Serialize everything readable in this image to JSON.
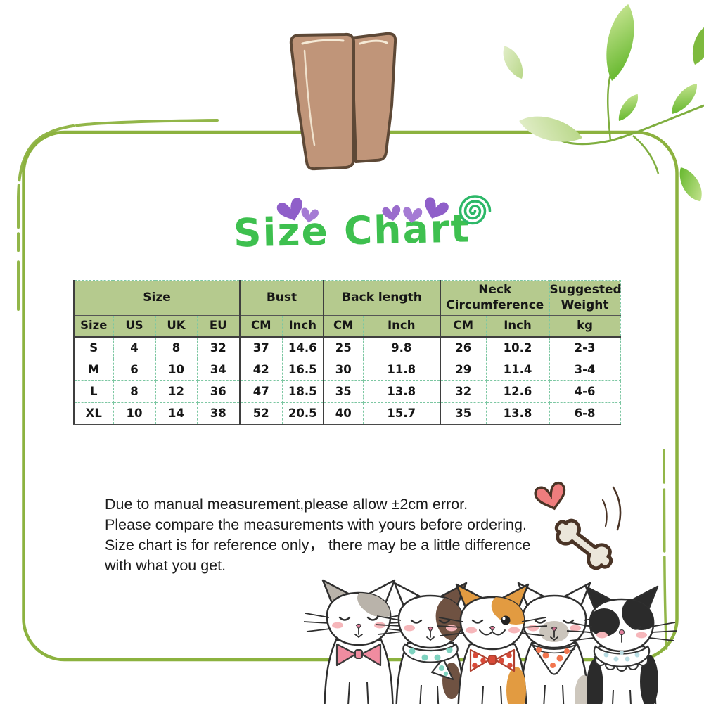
{
  "title": "Size Chart",
  "table": {
    "group_headers": [
      {
        "label": "Size",
        "span": 4
      },
      {
        "label": "Bust",
        "span": 2
      },
      {
        "label": "Back length",
        "span": 2
      },
      {
        "label": "Neck Circumference",
        "span": 2
      },
      {
        "label": "Suggested Weight",
        "span": 1
      }
    ],
    "sub_headers": [
      "Size",
      "US",
      "UK",
      "EU",
      "CM",
      "Inch",
      "CM",
      "Inch",
      "CM",
      "Inch",
      "kg"
    ],
    "rows": [
      [
        "S",
        "4",
        "8",
        "32",
        "37",
        "14.6",
        "25",
        "9.8",
        "26",
        "10.2",
        "2-3"
      ],
      [
        "M",
        "6",
        "10",
        "34",
        "42",
        "16.5",
        "30",
        "11.8",
        "29",
        "11.4",
        "3-4"
      ],
      [
        "L",
        "8",
        "12",
        "36",
        "47",
        "18.5",
        "35",
        "13.8",
        "32",
        "12.6",
        "4-6"
      ],
      [
        "XL",
        "10",
        "14",
        "38",
        "52",
        "20.5",
        "40",
        "15.7",
        "35",
        "13.8",
        "6-8"
      ]
    ]
  },
  "chart_data": {
    "type": "table",
    "title": "Size Chart",
    "columns": [
      "Size",
      "US",
      "UK",
      "EU",
      "Bust CM",
      "Bust Inch",
      "Back length CM",
      "Back length Inch",
      "Neck Circumference CM",
      "Neck Circumference Inch",
      "Suggested Weight kg"
    ],
    "rows": [
      [
        "S",
        4,
        8,
        32,
        37,
        14.6,
        25,
        9.8,
        26,
        10.2,
        "2-3"
      ],
      [
        "M",
        6,
        10,
        34,
        42,
        16.5,
        30,
        11.8,
        29,
        11.4,
        "3-4"
      ],
      [
        "L",
        8,
        12,
        36,
        47,
        18.5,
        35,
        13.8,
        32,
        12.6,
        "4-6"
      ],
      [
        "XL",
        10,
        14,
        38,
        52,
        20.5,
        40,
        15.7,
        35,
        13.8,
        "6-8"
      ]
    ]
  },
  "disclaimer": "Due to manual measurement,please allow ±2cm error.\nPlease compare the measurements with yours before ordering.\nSize chart is for reference only， there may be a little difference\nwith what you get.",
  "decor": {
    "frame": "hand-drawn double green rounded frame",
    "clothespin": "wooden clothespin at top center",
    "leaves": "green leaf branch top right",
    "title_hearts": "purple hearts",
    "title_spiral": "green spiral doodle",
    "doodle": "pink heart and dog bone with motion lines",
    "cats": [
      "gray-white cat with pink bow tie",
      "white cat with brown patch and teal polka-dot scarf",
      "orange-white winking cat with red polka-dot bow tie",
      "white cat with gray muzzle and orange polka-dot bandana",
      "black-white cat with blue polka-dot ruffled collar"
    ]
  },
  "colors": {
    "frame_green": "#8cb23f",
    "title_green": "#3ec04f",
    "header_bg": "#b5ca8e",
    "grid_teal": "#7cc7a2",
    "heart_purple": "#9a6ccc",
    "spiral_green": "#2db868",
    "bow_pink": "#f08ca0",
    "scarf_teal": "#7ed3c0",
    "dot_red": "#d84a38",
    "bandana_orange": "#f2764f",
    "collar_blue": "#b9dde4",
    "clothespin_brown": "#c09579",
    "doodle_heart_pink": "#ee7d7d"
  }
}
